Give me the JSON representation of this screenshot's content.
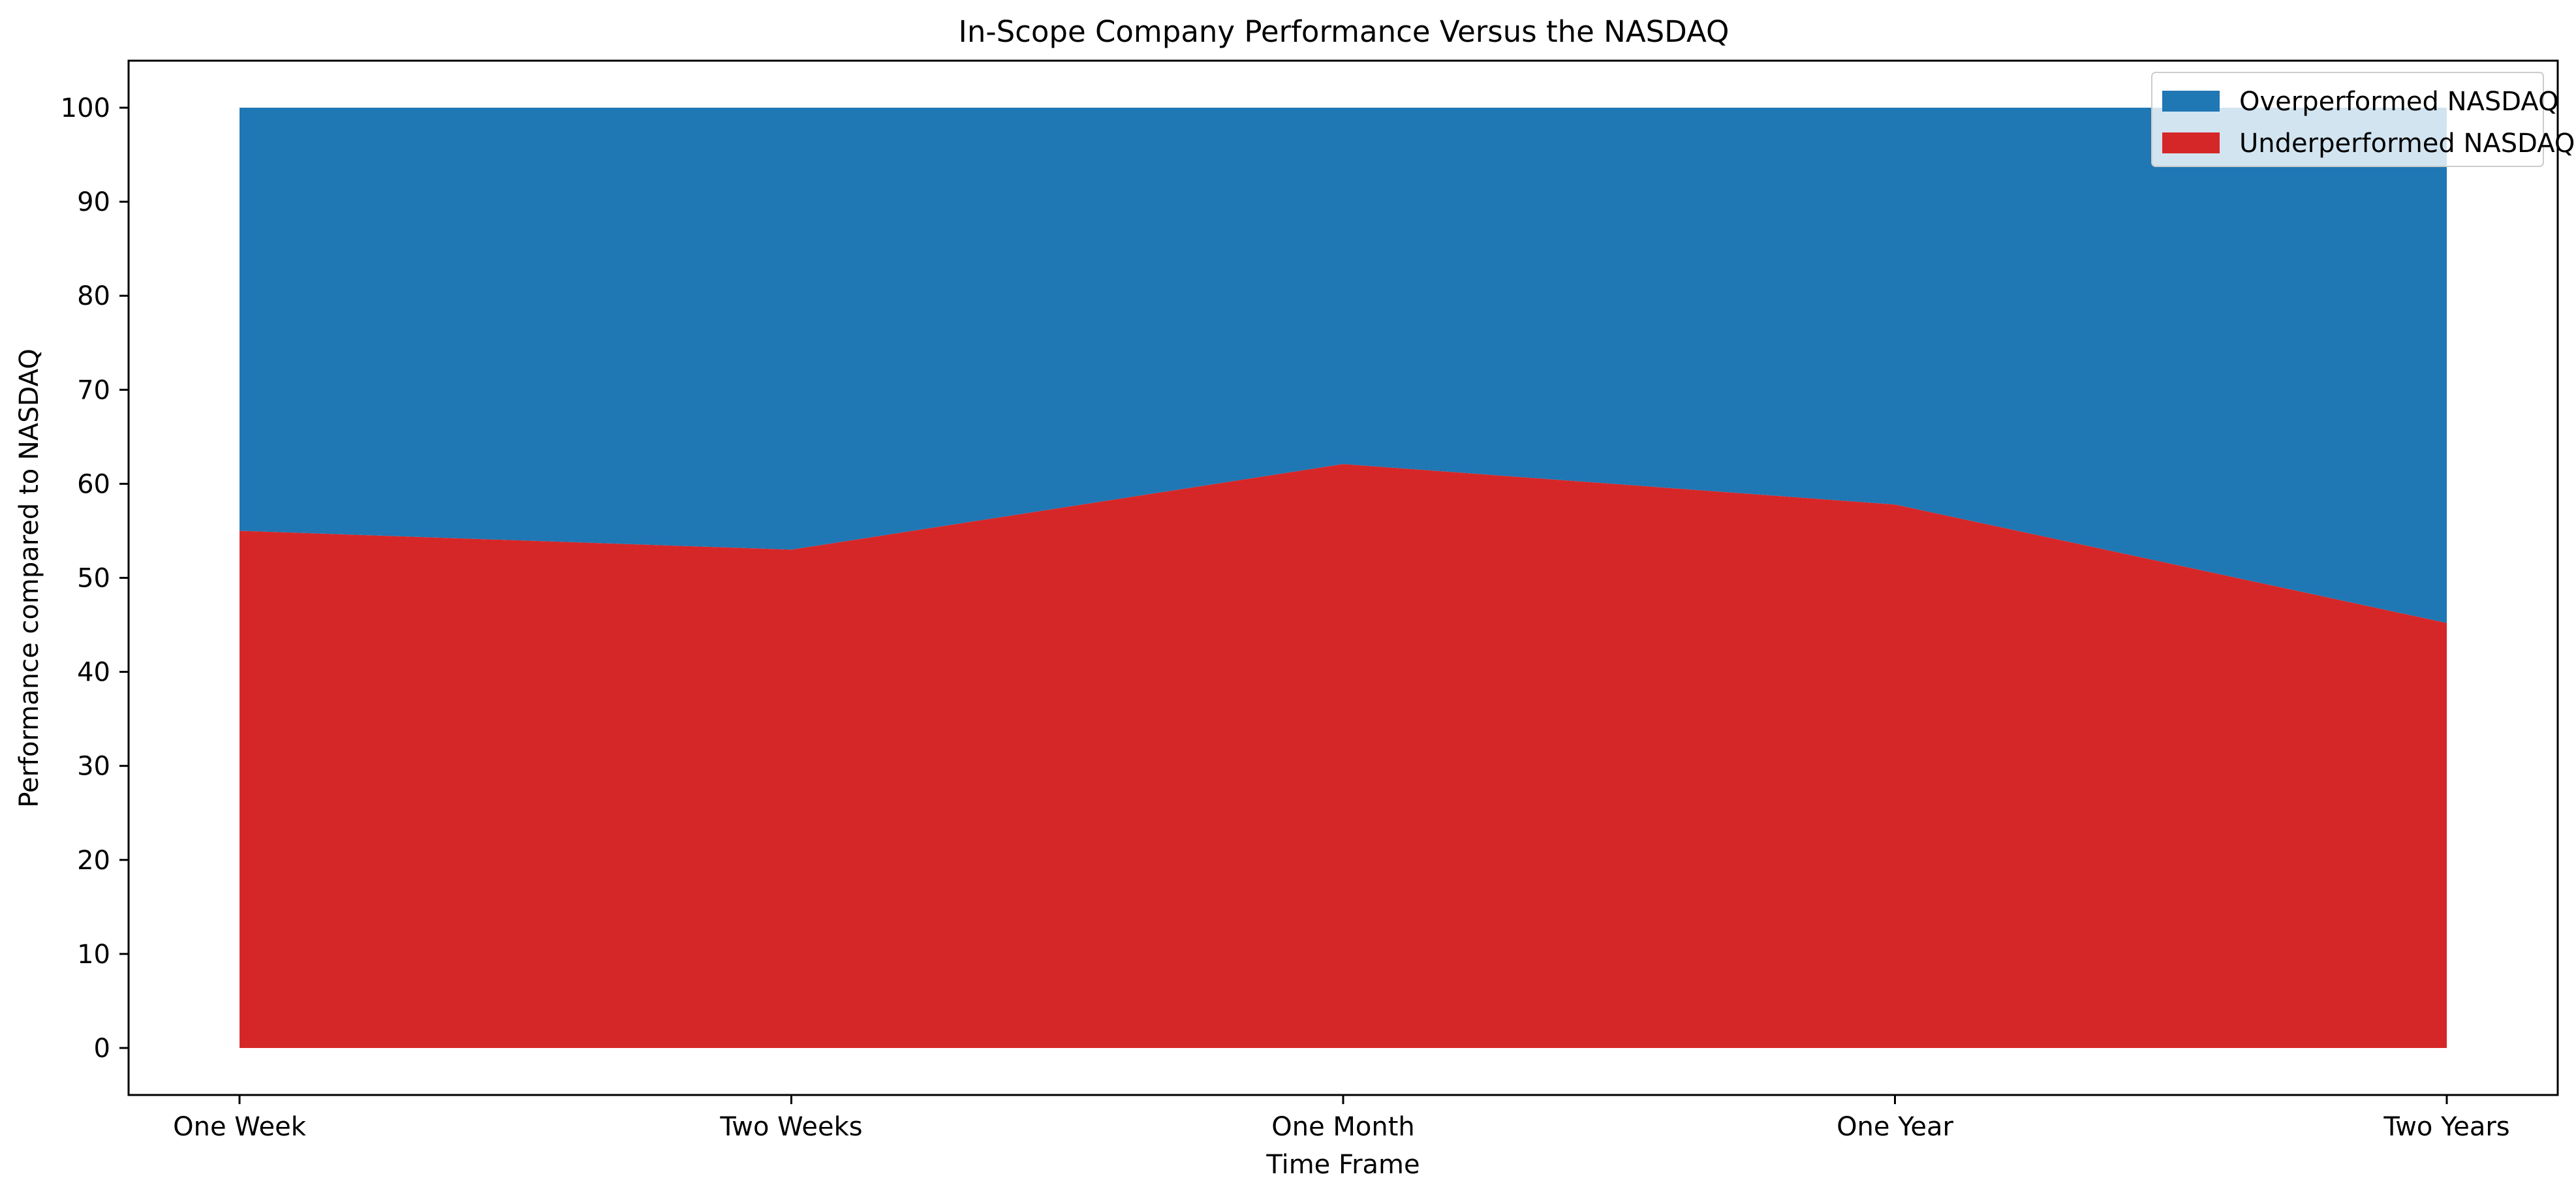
{
  "chart_data": {
    "type": "area",
    "stacked": true,
    "title": "In-Scope Company Performance Versus the NASDAQ",
    "xlabel": "Time Frame",
    "ylabel": "Performance compared to NASDAQ",
    "categories": [
      "One Week",
      "Two Weeks",
      "One Month",
      "One Year",
      "Two Years"
    ],
    "ylim": [
      -5,
      105
    ],
    "yticks": [
      0,
      10,
      20,
      30,
      40,
      50,
      60,
      70,
      80,
      90,
      100
    ],
    "grid": false,
    "legend_position": "top-right",
    "series": [
      {
        "name": "Underperformed NASDAQ",
        "color": "#d62728",
        "values": [
          55,
          53,
          62.1,
          57.8,
          45.2
        ]
      },
      {
        "name": "Overperformed NASDAQ",
        "color": "#1f77b4",
        "values": [
          45,
          47,
          37.9,
          42.2,
          54.8
        ]
      }
    ],
    "legend_order": [
      "Overperformed NASDAQ",
      "Underperformed NASDAQ"
    ]
  }
}
